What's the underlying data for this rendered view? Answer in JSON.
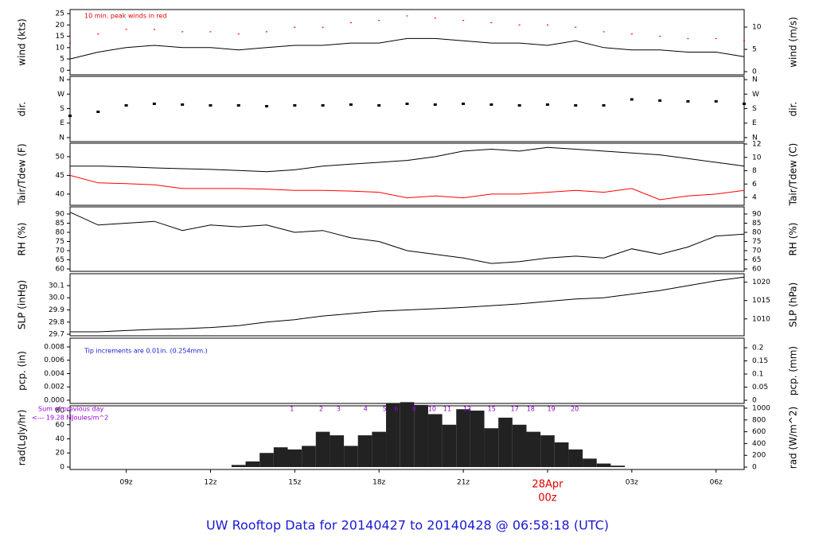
{
  "title": "UW Rooftop Data for 20140427  to  20140428 @ 06:58:18  (UTC)",
  "chart_data": [
    {
      "type": "line",
      "y_label": "wind (kts)",
      "y2_label": "wind (m/s)",
      "annotation": "10 min. peak winds in red",
      "xlim": [
        7,
        31
      ],
      "x": [
        7,
        8,
        9,
        10,
        11,
        12,
        13,
        14,
        15,
        16,
        17,
        18,
        19,
        20,
        21,
        22,
        23,
        24,
        25,
        26,
        27,
        28,
        29,
        30,
        31
      ],
      "ylim": [
        -2,
        26.8
      ],
      "yticks": [
        0,
        5,
        10,
        15,
        20,
        25
      ],
      "y2lim": [
        -0.71,
        13.93
      ],
      "y2ticks": [
        0,
        5,
        10
      ],
      "series": [
        {
          "name": "wind",
          "mode": "line",
          "color": "#000000",
          "values": [
            5,
            8,
            10,
            11,
            10,
            10,
            9,
            10,
            11,
            11,
            12,
            12,
            14,
            14,
            13,
            12,
            12,
            11,
            13,
            10,
            9,
            9,
            8,
            8,
            6
          ]
        },
        {
          "name": "peak",
          "mode": "points",
          "color": "#ff0000",
          "values": [
            12,
            16,
            18,
            18,
            17,
            17,
            16,
            17,
            19,
            19,
            21,
            22,
            24,
            23,
            22,
            21,
            20,
            20,
            19,
            17,
            16,
            15,
            14,
            14,
            13
          ]
        }
      ]
    },
    {
      "type": "scatter",
      "y_label": "dir.",
      "y2_label": "dir.",
      "xlim": [
        7,
        31
      ],
      "x": [
        7,
        8,
        9,
        10,
        11,
        12,
        13,
        14,
        15,
        16,
        17,
        18,
        19,
        20,
        21,
        22,
        23,
        24,
        25,
        26,
        27,
        28,
        29,
        30,
        31
      ],
      "ylim": [
        -25,
        380
      ],
      "yticks": [
        {
          "value": 0,
          "label": "N"
        },
        {
          "value": 90,
          "label": "E"
        },
        {
          "value": 180,
          "label": "S"
        },
        {
          "value": 270,
          "label": "W"
        },
        {
          "value": 360,
          "label": "N"
        }
      ],
      "y2lim": [
        -25,
        380
      ],
      "y2ticks": [
        {
          "value": 0,
          "label": "N"
        },
        {
          "value": 90,
          "label": "E"
        },
        {
          "value": 180,
          "label": "S"
        },
        {
          "value": 270,
          "label": "W"
        },
        {
          "value": 360,
          "label": "N"
        }
      ],
      "series": [
        {
          "name": "dir",
          "color": "#000000",
          "values": [
            135,
            160,
            200,
            210,
            205,
            200,
            200,
            195,
            200,
            200,
            205,
            200,
            210,
            205,
            210,
            205,
            200,
            205,
            200,
            200,
            237,
            230,
            225,
            225,
            210
          ]
        }
      ]
    },
    {
      "type": "line",
      "y_label": "Tair/Tdew (F)",
      "y2_label": "Tair/Tdew (C)",
      "xlim": [
        7,
        31
      ],
      "x": [
        7,
        8,
        9,
        10,
        11,
        12,
        13,
        14,
        15,
        16,
        17,
        18,
        19,
        20,
        21,
        22,
        23,
        24,
        25,
        26,
        27,
        28,
        29,
        30,
        31
      ],
      "ylim": [
        37,
        53.6
      ],
      "yticks": [
        40,
        45,
        50
      ],
      "y2lim": [
        2.81,
        12.12
      ],
      "y2ticks": [
        4,
        6,
        8,
        10,
        12
      ],
      "series": [
        {
          "name": "Tair",
          "mode": "line",
          "color": "#000000",
          "values": [
            47.5,
            47.5,
            47.3,
            47,
            46.8,
            46.6,
            46.3,
            46,
            46.5,
            47.5,
            48,
            48.5,
            49,
            50,
            51.5,
            52,
            51.5,
            52.5,
            52,
            51.5,
            51,
            50.5,
            49.5,
            48.5,
            47.5
          ]
        },
        {
          "name": "Tdew",
          "mode": "line",
          "color": "#ff0000",
          "values": [
            45,
            43,
            42.8,
            42.5,
            41.5,
            41.5,
            41.5,
            41.3,
            41,
            41,
            40.8,
            40.5,
            39,
            39.5,
            39,
            40,
            40,
            40.5,
            41,
            40.5,
            41.5,
            38.5,
            39.5,
            40,
            41
          ]
        }
      ]
    },
    {
      "type": "line",
      "y_label": "RH (%)",
      "y2_label": "RH (%)",
      "xlim": [
        7,
        31
      ],
      "x": [
        7,
        8,
        9,
        10,
        11,
        12,
        13,
        14,
        15,
        16,
        17,
        18,
        19,
        20,
        21,
        22,
        23,
        24,
        25,
        26,
        27,
        28,
        29,
        30,
        31
      ],
      "ylim": [
        58.7,
        93.9
      ],
      "yticks": [
        60,
        65,
        70,
        75,
        80,
        85,
        90
      ],
      "y2lim": [
        58.7,
        93.9
      ],
      "y2ticks": [
        60,
        65,
        70,
        75,
        80,
        85,
        90
      ],
      "series": [
        {
          "name": "RH",
          "mode": "line",
          "color": "#000000",
          "values": [
            91,
            84,
            85,
            86,
            81,
            84,
            83,
            84,
            80,
            81,
            77,
            75,
            70,
            68,
            66,
            63,
            64,
            66,
            67,
            66,
            71,
            68,
            72,
            78,
            79
          ]
        }
      ]
    },
    {
      "type": "line",
      "y_label": "SLP (inHg)",
      "y2_label": "SLP (hPa)",
      "xlim": [
        7,
        31
      ],
      "x": [
        7,
        8,
        9,
        10,
        11,
        12,
        13,
        14,
        15,
        16,
        17,
        18,
        19,
        20,
        21,
        22,
        23,
        24,
        25,
        26,
        27,
        28,
        29,
        30,
        31
      ],
      "ylim": [
        29.687,
        30.198
      ],
      "yticks": [
        29.7,
        29.8,
        29.9,
        {
          "value": 30,
          "label": "30.0"
        },
        30.1
      ],
      "y2lim": [
        1005.4,
        1022.3
      ],
      "y2ticks": [
        1010,
        1015,
        1020
      ],
      "series": [
        {
          "name": "SLP",
          "mode": "line",
          "color": "#000000",
          "values": [
            29.72,
            29.72,
            29.73,
            29.74,
            29.745,
            29.755,
            29.77,
            29.8,
            29.82,
            29.85,
            29.87,
            29.89,
            29.9,
            29.91,
            29.92,
            29.935,
            29.95,
            29.97,
            29.99,
            30.0,
            30.03,
            30.06,
            30.1,
            30.14,
            30.17
          ]
        }
      ]
    },
    {
      "type": "line",
      "y_label": "pcp. (in)",
      "y2_label": "pcp. (mm)",
      "annotation": "Tip increments are 0.01in. (0.254mm.)",
      "xlim": [
        7,
        31
      ],
      "ylim": [
        -0.00048,
        0.00931
      ],
      "yticks": [
        {
          "value": 0,
          "label": "0.000"
        },
        {
          "value": 0.002,
          "label": "0.002"
        },
        {
          "value": 0.004,
          "label": "0.004"
        },
        {
          "value": 0.006,
          "label": "0.006"
        },
        {
          "value": 0.008,
          "label": "0.008"
        }
      ],
      "y2lim": [
        -0.012,
        0.2365
      ],
      "y2ticks": [
        0,
        0.05,
        0.1,
        0.15,
        0.2
      ],
      "series": []
    },
    {
      "type": "bar",
      "y_label": "rad(Lgly/hr)",
      "y2_label": "rad (W/m^2)",
      "xlim": [
        7,
        31
      ],
      "sum_label": "Sum of previous day",
      "sum_value": "<--- 19.28 MJoules/m^2",
      "x": [
        7,
        7.5,
        8,
        8.5,
        9,
        9.5,
        10,
        10.5,
        11,
        11.5,
        12,
        12.5,
        13,
        13.5,
        14,
        14.5,
        15,
        15.5,
        16,
        16.5,
        17,
        17.5,
        18,
        18.5,
        19,
        19.5,
        20,
        20.5,
        21,
        21.5,
        22,
        22.5,
        23,
        23.5,
        24,
        24.5,
        25,
        25.5,
        26,
        26.5,
        27,
        27.5,
        28,
        28.5,
        29,
        29.5,
        30,
        30.5,
        31
      ],
      "values": [
        0,
        0,
        0,
        0,
        0,
        0,
        0,
        0,
        0,
        0,
        0,
        0,
        3,
        8,
        20,
        28,
        25,
        30,
        50,
        45,
        30,
        45,
        50,
        90,
        92,
        88,
        75,
        60,
        82,
        80,
        55,
        70,
        60,
        50,
        45,
        35,
        25,
        12,
        5,
        2,
        0,
        0,
        0,
        0,
        0,
        0,
        0,
        0,
        0
      ],
      "color": "#222222",
      "ylim": [
        -3.4,
        86.8
      ],
      "yticks": [
        0,
        20,
        40,
        60,
        80
      ],
      "y2lim": [
        -40,
        1040
      ],
      "y2ticks": [
        0,
        200,
        400,
        600,
        800,
        1000
      ],
      "markers": {
        "x": [
          14.9,
          15.94,
          16.56,
          17.52,
          18.2,
          18.62,
          19.25,
          19.89,
          20.43,
          21.14,
          22.01,
          22.83,
          23.4,
          24.13,
          24.97
        ],
        "values": [
          1,
          2,
          3,
          4,
          5,
          6,
          8,
          10,
          11,
          13,
          15,
          17,
          18,
          19,
          20
        ]
      },
      "xticks": [
        {
          "value": 9,
          "label": "09z"
        },
        {
          "value": 12,
          "label": "12z"
        },
        {
          "value": 15,
          "label": "15z"
        },
        {
          "value": 18,
          "label": "18z"
        },
        {
          "value": 21,
          "label": "21z"
        },
        {
          "value": 24,
          "label": "00z"
        },
        {
          "value": 27,
          "label": "03z"
        },
        {
          "value": 30,
          "label": "06z"
        }
      ],
      "x_date_label": {
        "value": 24,
        "label": "28Apr"
      }
    }
  ]
}
